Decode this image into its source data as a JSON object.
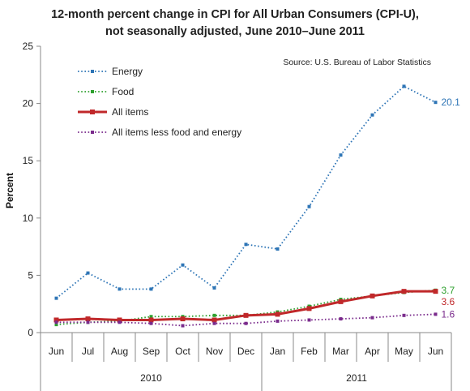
{
  "chart_data": {
    "type": "line",
    "title_lines": [
      "12-month percent change in CPI for All Urban Consumers (CPI-U),",
      "not seasonally adjusted, June 2010–June 2011"
    ],
    "source": "Source: U.S. Bureau of Labor Statistics",
    "ylabel": "Percent",
    "ylim": [
      0,
      25
    ],
    "yticks": [
      0,
      5,
      10,
      15,
      20,
      25
    ],
    "categories": [
      "Jun",
      "Jul",
      "Aug",
      "Sep",
      "Oct",
      "Nov",
      "Dec",
      "Jan",
      "Feb",
      "Mar",
      "Apr",
      "May",
      "Jun"
    ],
    "year_groups": [
      {
        "label": "2010",
        "count": 7
      },
      {
        "label": "2011",
        "count": 6
      }
    ],
    "grid": false,
    "legend_position": "top-left",
    "series": [
      {
        "name": "Energy",
        "color": "#2e75b6",
        "style": "dotted",
        "values": [
          3.0,
          5.2,
          3.8,
          3.8,
          5.9,
          3.9,
          7.7,
          7.3,
          11.0,
          15.5,
          19.0,
          21.5,
          20.1
        ],
        "end_label": "20.1"
      },
      {
        "name": "Food",
        "color": "#2ea02e",
        "style": "dotted",
        "values": [
          0.7,
          0.9,
          1.0,
          1.4,
          1.4,
          1.5,
          1.5,
          1.8,
          2.3,
          2.9,
          3.2,
          3.5,
          3.7
        ],
        "end_label": "3.7"
      },
      {
        "name": "All items",
        "color": "#c0282a",
        "style": "solid",
        "values": [
          1.1,
          1.2,
          1.1,
          1.1,
          1.2,
          1.1,
          1.5,
          1.6,
          2.1,
          2.7,
          3.2,
          3.6,
          3.6
        ],
        "end_label": "3.6"
      },
      {
        "name": "All items less food and energy",
        "color": "#7a2b8c",
        "style": "dotted",
        "values": [
          0.9,
          0.9,
          0.9,
          0.8,
          0.6,
          0.8,
          0.8,
          1.0,
          1.1,
          1.2,
          1.3,
          1.5,
          1.6
        ],
        "end_label": "1.6"
      }
    ]
  }
}
